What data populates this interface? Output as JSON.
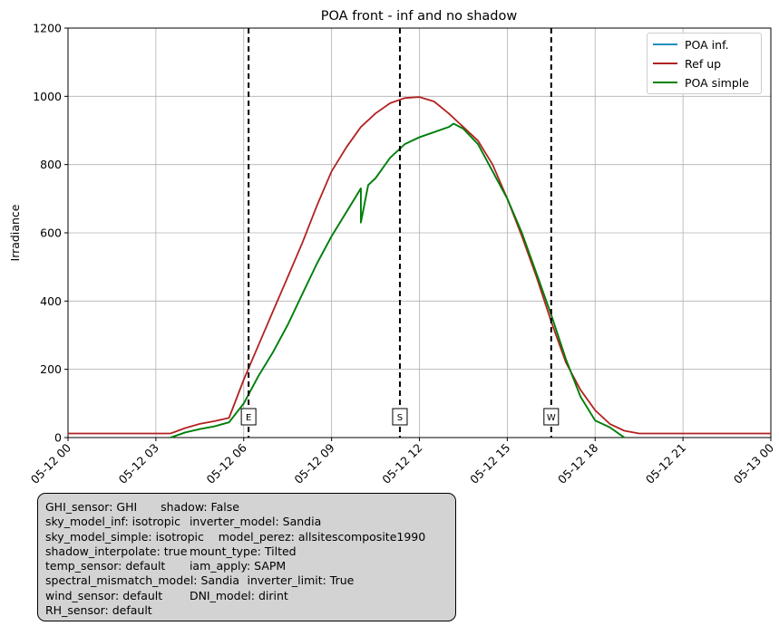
{
  "chart_data": {
    "type": "line",
    "title": "POA front - inf and no shadow",
    "ylabel": "Irradiance",
    "xlabel": "",
    "xlim": [
      "05-12 00:00",
      "05-13 00:00"
    ],
    "ylim": [
      0,
      1200
    ],
    "grid": true,
    "legend_position": "top-right",
    "x_ticks": [
      "05-12 00",
      "05-12 03",
      "05-12 06",
      "05-12 09",
      "05-12 12",
      "05-12 15",
      "05-12 18",
      "05-12 21",
      "05-13 00"
    ],
    "y_ticks": [
      0,
      200,
      400,
      600,
      800,
      1000,
      1200
    ],
    "vlines": [
      {
        "x": "05-12 06:10",
        "label": "E"
      },
      {
        "x": "05-12 11:20",
        "label": "S"
      },
      {
        "x": "05-12 16:30",
        "label": "W"
      }
    ],
    "series": [
      {
        "name": "POA inf.",
        "color": "#1f8fbf",
        "points": [
          [
            "05-12 03:30",
            0
          ],
          [
            "05-12 04:00",
            15
          ],
          [
            "05-12 04:30",
            25
          ],
          [
            "05-12 05:00",
            33
          ],
          [
            "05-12 05:30",
            45
          ],
          [
            "05-12 06:00",
            100
          ],
          [
            "05-12 06:30",
            180
          ],
          [
            "05-12 07:00",
            250
          ],
          [
            "05-12 07:30",
            330
          ],
          [
            "05-12 08:00",
            420
          ],
          [
            "05-12 08:30",
            510
          ],
          [
            "05-12 09:00",
            590
          ],
          [
            "05-12 09:30",
            660
          ],
          [
            "05-12 10:00",
            730
          ],
          [
            "05-12 10:00",
            630
          ],
          [
            "05-12 10:15",
            740
          ],
          [
            "05-12 10:30",
            760
          ],
          [
            "05-12 11:00",
            820
          ],
          [
            "05-12 11:30",
            860
          ],
          [
            "05-12 12:00",
            880
          ],
          [
            "05-12 12:30",
            895
          ],
          [
            "05-12 13:00",
            910
          ],
          [
            "05-12 13:10",
            920
          ],
          [
            "05-12 13:30",
            905
          ],
          [
            "05-12 14:00",
            860
          ],
          [
            "05-12 14:30",
            780
          ],
          [
            "05-12 15:00",
            700
          ],
          [
            "05-12 15:30",
            600
          ],
          [
            "05-12 16:00",
            480
          ],
          [
            "05-12 16:30",
            360
          ],
          [
            "05-12 17:00",
            230
          ],
          [
            "05-12 17:30",
            120
          ],
          [
            "05-12 18:00",
            50
          ],
          [
            "05-12 18:30",
            30
          ],
          [
            "05-12 19:00",
            0
          ]
        ]
      },
      {
        "name": "Ref up",
        "color": "#b22222",
        "points": [
          [
            "05-12 00:00",
            12
          ],
          [
            "05-12 03:30",
            12
          ],
          [
            "05-12 04:00",
            28
          ],
          [
            "05-12 04:30",
            40
          ],
          [
            "05-12 05:00",
            48
          ],
          [
            "05-12 05:30",
            58
          ],
          [
            "05-12 06:00",
            170
          ],
          [
            "05-12 06:30",
            270
          ],
          [
            "05-12 07:00",
            370
          ],
          [
            "05-12 07:30",
            470
          ],
          [
            "05-12 08:00",
            570
          ],
          [
            "05-12 08:30",
            680
          ],
          [
            "05-12 09:00",
            780
          ],
          [
            "05-12 09:30",
            850
          ],
          [
            "05-12 10:00",
            910
          ],
          [
            "05-12 10:30",
            950
          ],
          [
            "05-12 11:00",
            980
          ],
          [
            "05-12 11:30",
            995
          ],
          [
            "05-12 12:00",
            998
          ],
          [
            "05-12 12:30",
            985
          ],
          [
            "05-12 13:00",
            950
          ],
          [
            "05-12 13:30",
            910
          ],
          [
            "05-12 14:00",
            870
          ],
          [
            "05-12 14:30",
            800
          ],
          [
            "05-12 15:00",
            700
          ],
          [
            "05-12 15:30",
            590
          ],
          [
            "05-12 16:00",
            470
          ],
          [
            "05-12 16:30",
            340
          ],
          [
            "05-12 17:00",
            220
          ],
          [
            "05-12 17:30",
            140
          ],
          [
            "05-12 18:00",
            80
          ],
          [
            "05-12 18:30",
            40
          ],
          [
            "05-12 19:00",
            20
          ],
          [
            "05-12 19:30",
            12
          ],
          [
            "05-13 00:00",
            12
          ]
        ]
      },
      {
        "name": "POA simple",
        "color": "#008000",
        "points": [
          [
            "05-12 03:30",
            0
          ],
          [
            "05-12 04:00",
            15
          ],
          [
            "05-12 04:30",
            25
          ],
          [
            "05-12 05:00",
            33
          ],
          [
            "05-12 05:30",
            45
          ],
          [
            "05-12 06:00",
            100
          ],
          [
            "05-12 06:30",
            180
          ],
          [
            "05-12 07:00",
            250
          ],
          [
            "05-12 07:30",
            330
          ],
          [
            "05-12 08:00",
            420
          ],
          [
            "05-12 08:30",
            510
          ],
          [
            "05-12 09:00",
            590
          ],
          [
            "05-12 09:30",
            660
          ],
          [
            "05-12 10:00",
            730
          ],
          [
            "05-12 10:00",
            630
          ],
          [
            "05-12 10:15",
            740
          ],
          [
            "05-12 10:30",
            760
          ],
          [
            "05-12 11:00",
            820
          ],
          [
            "05-12 11:30",
            860
          ],
          [
            "05-12 12:00",
            880
          ],
          [
            "05-12 12:30",
            895
          ],
          [
            "05-12 13:00",
            910
          ],
          [
            "05-12 13:10",
            920
          ],
          [
            "05-12 13:30",
            905
          ],
          [
            "05-12 14:00",
            860
          ],
          [
            "05-12 14:30",
            780
          ],
          [
            "05-12 15:00",
            700
          ],
          [
            "05-12 15:30",
            600
          ],
          [
            "05-12 16:00",
            480
          ],
          [
            "05-12 16:30",
            360
          ],
          [
            "05-12 17:00",
            230
          ],
          [
            "05-12 17:30",
            120
          ],
          [
            "05-12 18:00",
            50
          ],
          [
            "05-12 18:30",
            30
          ],
          [
            "05-12 19:00",
            0
          ]
        ]
      }
    ]
  },
  "info_box": {
    "lines": [
      "GHI_sensor: GHI\tshadow: False",
      "sky_model_inf: isotropic\tinverter_model: Sandia",
      "sky_model_simple: isotropic\tmodel_perez: allsitescomposite1990",
      "shadow_interpolate: true\tmount_type: Tilted",
      "temp_sensor: default\tiam_apply: SAPM",
      "spectral_mismatch_model: Sandia\tinverter_limit: True",
      "wind_sensor: default\tDNI_model: dirint",
      "RH_sensor: default"
    ]
  }
}
